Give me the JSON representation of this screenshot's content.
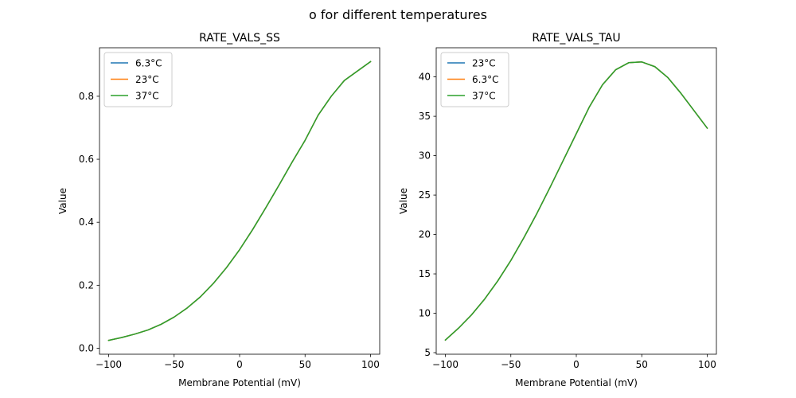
{
  "figure": {
    "suptitle": "o for different temperatures"
  },
  "chart_data": [
    {
      "type": "line",
      "title": "RATE_VALS_SS",
      "xlabel": "Membrane Potential (mV)",
      "ylabel": "Value",
      "xlim": [
        -107,
        107
      ],
      "ylim": [
        -0.019,
        0.954
      ],
      "xticks": [
        -100,
        -50,
        0,
        50,
        100
      ],
      "xtick_labels": [
        "−100",
        "−50",
        "0",
        "50",
        "100"
      ],
      "yticks": [
        0.0,
        0.2,
        0.4,
        0.6,
        0.8
      ],
      "ytick_labels": [
        "0.0",
        "0.2",
        "0.4",
        "0.6",
        "0.8"
      ],
      "legend_position": "top-left",
      "x": [
        -100,
        -90,
        -80,
        -70,
        -60,
        -50,
        -40,
        -30,
        -20,
        -10,
        0,
        10,
        20,
        30,
        40,
        50,
        60,
        70,
        80,
        90,
        100
      ],
      "series": [
        {
          "name": "6.3°C",
          "color": "#1f77b4",
          "values": [
            0.025,
            0.034,
            0.045,
            0.058,
            0.076,
            0.099,
            0.128,
            0.163,
            0.206,
            0.256,
            0.313,
            0.377,
            0.446,
            0.517,
            0.59,
            0.66,
            0.74,
            0.8,
            0.85,
            0.88,
            0.91
          ]
        },
        {
          "name": "23°C",
          "color": "#ff7f0e",
          "values": [
            0.025,
            0.034,
            0.045,
            0.058,
            0.076,
            0.099,
            0.128,
            0.163,
            0.206,
            0.256,
            0.313,
            0.377,
            0.446,
            0.517,
            0.59,
            0.66,
            0.74,
            0.8,
            0.85,
            0.88,
            0.91
          ]
        },
        {
          "name": "37°C",
          "color": "#2ca02c",
          "values": [
            0.025,
            0.034,
            0.045,
            0.058,
            0.076,
            0.099,
            0.128,
            0.163,
            0.206,
            0.256,
            0.313,
            0.377,
            0.446,
            0.517,
            0.59,
            0.66,
            0.74,
            0.8,
            0.85,
            0.88,
            0.91
          ]
        }
      ]
    },
    {
      "type": "line",
      "title": "RATE_VALS_TAU",
      "xlabel": "Membrane Potential (mV)",
      "ylabel": "Value",
      "xlim": [
        -107,
        107
      ],
      "ylim": [
        4.8,
        43.7
      ],
      "xticks": [
        -100,
        -50,
        0,
        50,
        100
      ],
      "xtick_labels": [
        "−100",
        "−50",
        "0",
        "50",
        "100"
      ],
      "yticks": [
        5,
        10,
        15,
        20,
        25,
        30,
        35,
        40
      ],
      "ytick_labels": [
        "5",
        "10",
        "15",
        "20",
        "25",
        "30",
        "35",
        "40"
      ],
      "legend_position": "top-left",
      "x": [
        -100,
        -90,
        -80,
        -70,
        -60,
        -50,
        -40,
        -30,
        -20,
        -10,
        0,
        10,
        20,
        30,
        40,
        50,
        60,
        70,
        80,
        90,
        100
      ],
      "series": [
        {
          "name": "23°C",
          "color": "#1f77b4",
          "values": [
            6.6,
            8.1,
            9.8,
            11.8,
            14.1,
            16.7,
            19.6,
            22.7,
            26.0,
            29.4,
            32.8,
            36.2,
            39.0,
            40.9,
            41.8,
            41.9,
            41.3,
            39.9,
            37.9,
            35.7,
            33.5
          ]
        },
        {
          "name": "6.3°C",
          "color": "#ff7f0e",
          "values": [
            6.6,
            8.1,
            9.8,
            11.8,
            14.1,
            16.7,
            19.6,
            22.7,
            26.0,
            29.4,
            32.8,
            36.2,
            39.0,
            40.9,
            41.8,
            41.9,
            41.3,
            39.9,
            37.9,
            35.7,
            33.5
          ]
        },
        {
          "name": "37°C",
          "color": "#2ca02c",
          "values": [
            6.6,
            8.1,
            9.8,
            11.8,
            14.1,
            16.7,
            19.6,
            22.7,
            26.0,
            29.4,
            32.8,
            36.2,
            39.0,
            40.9,
            41.8,
            41.9,
            41.3,
            39.9,
            37.9,
            35.7,
            33.5
          ]
        }
      ]
    }
  ]
}
